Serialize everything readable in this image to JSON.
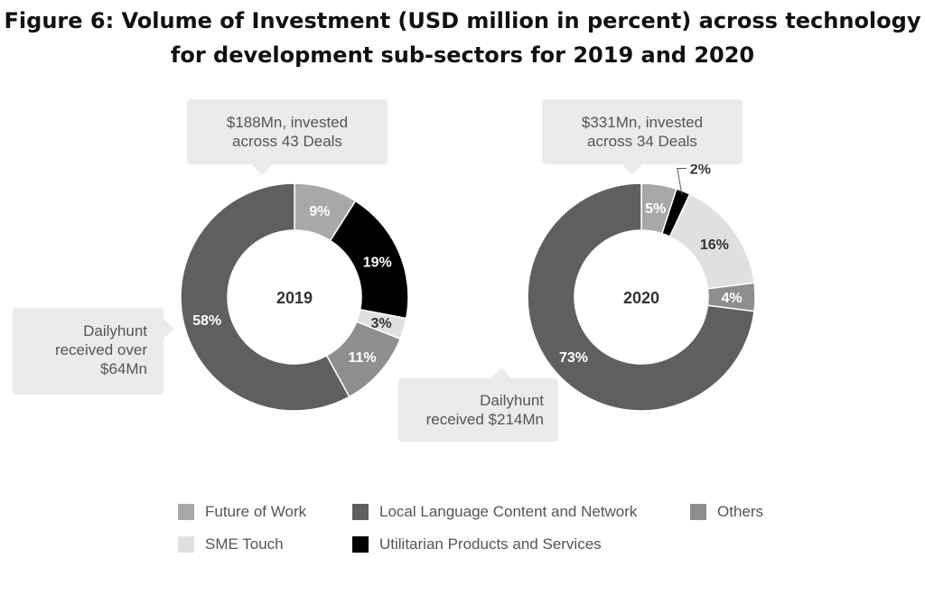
{
  "title_lines": [
    "Figure 6: Volume of Investment (USD million in percent) across technology",
    "for development sub-sectors for 2019 and 2020"
  ],
  "colors": {
    "future_of_work": "#a8a8a8",
    "local_language": "#5f5f5f",
    "others": "#8e8e8e",
    "sme_touch": "#e0e0e0",
    "utilitarian": "#000000",
    "callout_bg": "#ebebeb",
    "label_light": "#ffffff",
    "label_dark": "#333333"
  },
  "chart_data": [
    {
      "type": "pie",
      "variant": "donut",
      "center_label": "2019",
      "slices": [
        {
          "category": "Future of Work",
          "value": 9,
          "label": "9%"
        },
        {
          "category": "Utilitarian Products and Services",
          "value": 19,
          "label": "19%"
        },
        {
          "category": "SME Touch",
          "value": 3,
          "label": "3%"
        },
        {
          "category": "Others",
          "value": 11,
          "label": "11%"
        },
        {
          "category": "Local Language Content and Network",
          "value": 58,
          "label": "58%"
        }
      ],
      "callouts": [
        {
          "lines": [
            "$188Mn, invested",
            "across 43 Deals"
          ]
        },
        {
          "lines": [
            "Dailyhunt",
            "received over",
            "$64Mn"
          ]
        }
      ]
    },
    {
      "type": "pie",
      "variant": "donut",
      "center_label": "2020",
      "slices": [
        {
          "category": "Future of Work",
          "value": 5,
          "label": "5%"
        },
        {
          "category": "Utilitarian Products and Services",
          "value": 2,
          "label": "2%"
        },
        {
          "category": "SME Touch",
          "value": 16,
          "label": "16%"
        },
        {
          "category": "Others",
          "value": 4,
          "label": "4%"
        },
        {
          "category": "Local Language Content and Network",
          "value": 73,
          "label": "73%"
        }
      ],
      "callouts": [
        {
          "lines": [
            "$331Mn, invested",
            "across 34 Deals"
          ]
        },
        {
          "lines": [
            "Dailyhunt",
            "received $214Mn"
          ]
        }
      ]
    }
  ],
  "legend": [
    {
      "label": "Future of Work",
      "color_key": "future_of_work"
    },
    {
      "label": "Local Language Content and Network",
      "color_key": "local_language"
    },
    {
      "label": "Others",
      "color_key": "others"
    },
    {
      "label": "SME Touch",
      "color_key": "sme_touch"
    },
    {
      "label": "Utilitarian Products and Services",
      "color_key": "utilitarian"
    }
  ]
}
